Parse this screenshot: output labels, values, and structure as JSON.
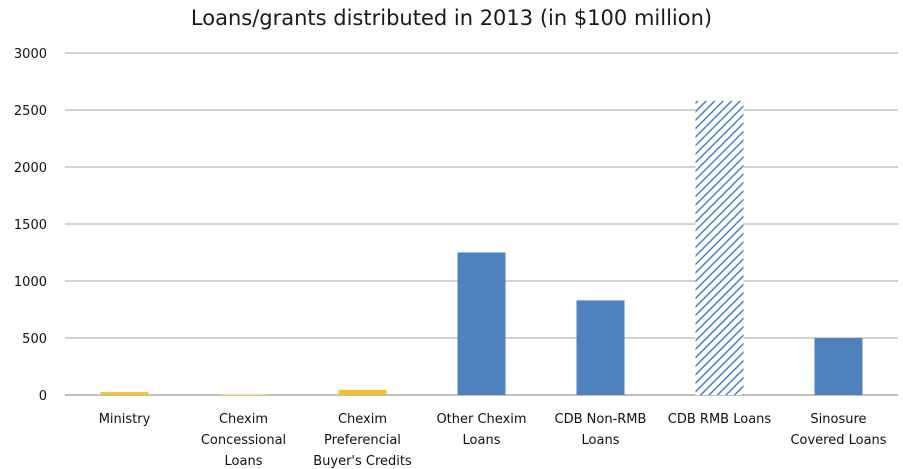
{
  "chart_data": {
    "type": "bar",
    "title": "Loans/grants distributed in 2013 (in $100 million)",
    "xlabel": "",
    "ylabel": "",
    "ylim": [
      0,
      3000
    ],
    "yticks": [
      "0",
      "500",
      "1000",
      "1500",
      "2000",
      "2500",
      "3000"
    ],
    "grid": true,
    "categories": [
      [
        "Ministry"
      ],
      [
        "Chexim",
        "Concessional",
        "Loans"
      ],
      [
        "Chexim",
        "Preferencial",
        "Buyer's Credits"
      ],
      [
        "Other Chexim",
        "Loans"
      ],
      [
        "CDB Non-RMB",
        "Loans"
      ],
      [
        "CDB RMB Loans"
      ],
      [
        "Sinosure",
        "Covered Loans"
      ]
    ],
    "values": [
      25,
      5,
      45,
      1250,
      830,
      2580,
      500
    ],
    "bar_fills": [
      "#F2C12E",
      "#F2C12E",
      "#F2C12E",
      "#4F81BD",
      "#4F81BD",
      "hatch",
      "#4F81BD"
    ],
    "colors": {
      "gold": "#F2C12E",
      "blue": "#4F81BD",
      "hatch": "#4F81BD",
      "grid": "#a6a6a6",
      "axis": "#7f7f7f"
    }
  }
}
